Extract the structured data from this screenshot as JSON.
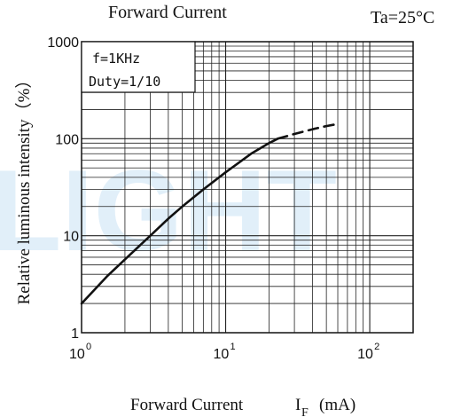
{
  "chart_data": {
    "type": "line",
    "title": "Forward Current",
    "condition": "Ta=25°C",
    "xlabel": "Forward Current",
    "xlabel_symbol": "I",
    "xlabel_subscript": "F",
    "xlabel_unit": "(mA)",
    "ylabel": "Relative luminous intensity（%）",
    "x_scale": "log",
    "y_scale": "log",
    "xlim": [
      1,
      200
    ],
    "ylim": [
      1,
      1000
    ],
    "x_ticks": [
      {
        "value": 1,
        "base": "10",
        "exp": "0"
      },
      {
        "value": 10,
        "base": "10",
        "exp": "1"
      },
      {
        "value": 100,
        "base": "10",
        "exp": "2"
      }
    ],
    "y_ticks": [
      {
        "value": 1,
        "label": "1"
      },
      {
        "value": 10,
        "label": "10"
      },
      {
        "value": 100,
        "label": "100"
      },
      {
        "value": 1000,
        "label": "1000"
      }
    ],
    "grid": true,
    "annotations": [
      "f=1KHz",
      "Duty=1/10"
    ],
    "series": [
      {
        "style": "solid",
        "x": [
          1,
          1.5,
          2,
          3,
          4,
          5,
          7,
          10,
          15,
          20,
          23
        ],
        "y": [
          2,
          3.8,
          5.7,
          10,
          15,
          20,
          30,
          45,
          70,
          90,
          100
        ]
      },
      {
        "style": "dashed",
        "x": [
          23,
          30,
          40,
          50,
          60
        ],
        "y": [
          100,
          112,
          125,
          135,
          142
        ]
      }
    ]
  },
  "watermark": "LIGHT"
}
